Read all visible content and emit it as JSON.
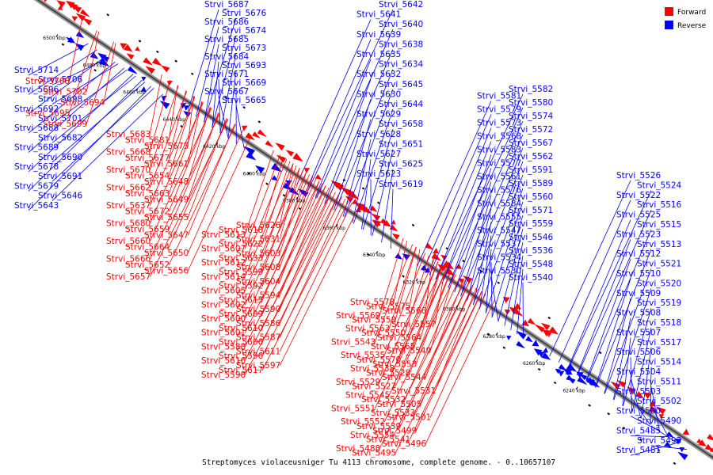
{
  "legend": [
    {
      "label": "Forward",
      "color": "#ff0000"
    },
    {
      "label": "Reverse",
      "color": "#0000ff"
    }
  ],
  "caption": "Streptomyces violaceusniger Tu 4113 chromosome, complete genome. - 0..10657107",
  "colors": {
    "forward": "#ff0000",
    "reverse": "#0000ff",
    "backbone": "#777777"
  },
  "ticks": [
    "6500 kbp",
    "6480 kbp",
    "6460 kbp",
    "6440 kbp",
    "6420 kbp",
    "6400 kbp",
    "6380 kbp",
    "6360 kbp",
    "6340 kbp",
    "6320 kbp",
    "6300 kbp",
    "6280 kbp",
    "6260 kbp",
    "6240 kbp"
  ],
  "reverse_genes": [
    "Strvi_5687",
    "Strvi_5676",
    "Strvi_5686",
    "Strvi_5674",
    "Strvi_5685",
    "Strvi_5673",
    "Strvi_5684",
    "Strvi_5693",
    "Strvi_5671",
    "Strvi_5669",
    "Strvi_5667",
    "Strvi_5665",
    "Strvi_5642",
    "Strvi_5641",
    "Strvi_5640",
    "Strvi_5639",
    "Strvi_5638",
    "Strvi_5635",
    "Strvi_5634",
    "Strvi_5632",
    "Strvi_5645",
    "Strvi_5630",
    "Strvi_5644",
    "Strvi_5629",
    "Strvi_5658",
    "Strvi_5628",
    "Strvi_5651",
    "Strvi_5627",
    "Strvi_5625",
    "Strvi_5623",
    "Strvi_5619",
    "Strvi_5714",
    "Strvi_5706",
    "Strvi_5696",
    "Strvi_5698",
    "Strvi_5692",
    "Strvi_5701",
    "Strvi_5688",
    "Strvi_5682",
    "Strvi_5689",
    "Strvi_5690",
    "Strvi_5678",
    "Strvi_5691",
    "Strvi_5679",
    "Strvi_5646",
    "Strvi_5643",
    "Strvi_5582",
    "Strvi_5581",
    "Strvi_5580",
    "Strvi_5579",
    "Strvi_5574",
    "Strvi_5573",
    "Strvi_5572",
    "Strvi_5568",
    "Strvi_5567",
    "Strvi_5583",
    "Strvi_5562",
    "Strvi_5577",
    "Strvi_5591",
    "Strvi_5561",
    "Strvi_5589",
    "Strvi_5576",
    "Strvi_5560",
    "Strvi_5584",
    "Strvi_5571",
    "Strvi_5555",
    "Strvi_5559",
    "Strvi_5547",
    "Strvi_5546",
    "Strvi_5537",
    "Strvi_5536",
    "Strvi_5534",
    "Strvi_5548",
    "Strvi_5530",
    "Strvi_5540",
    "Strvi_5526",
    "Strvi_5524",
    "Strvi_5522",
    "Strvi_5516",
    "Strvi_5525",
    "Strvi_5515",
    "Strvi_5523",
    "Strvi_5513",
    "Strvi_5512",
    "Strvi_5521",
    "Strvi_5510",
    "Strvi_5520",
    "Strvi_5509",
    "Strvi_5519",
    "Strvi_5508",
    "Strvi_5518",
    "Strvi_5507",
    "Strvi_5517",
    "Strvi_5506",
    "Strvi_5514",
    "Strvi_5504",
    "Strvi_5511",
    "Strvi_5503",
    "Strvi_5502",
    "Strvi_5500",
    "Strvi_5490",
    "Strvi_5485",
    "Strvi_5493",
    "Strvi_5481"
  ],
  "forward_genes": [
    "Strvi_5708",
    "Strvi_5702",
    "Strvi_5694",
    "Strvi_5695",
    "Strvi_5699",
    "Strvi_5683",
    "Strvi_5681",
    "Strvi_5675",
    "Strvi_5668",
    "Strvi_5677",
    "Strvi_5661",
    "Strvi_5670",
    "Strvi_5654",
    "Strvi_5648",
    "Strvi_5662",
    "Strvi_5663",
    "Strvi_5649",
    "Strvi_5637",
    "Strvi_5672",
    "Strvi_5655",
    "Strvi_5680",
    "Strvi_5659",
    "Strvi_5647",
    "Strvi_5660",
    "Strvi_5664",
    "Strvi_5650",
    "Strvi_5666",
    "Strvi_5652",
    "Strvi_5656",
    "Strvi_5657",
    "Strvi_5626",
    "Strvi_5618",
    "Strvi_5613",
    "Strvi_5631",
    "Strvi_5622",
    "Strvi_5607",
    "Strvi_5603",
    "Strvi_5633",
    "Strvi_5612",
    "Strvi_5608",
    "Strvi_5599",
    "Strvi_5614",
    "Strvi_5604",
    "Strvi_5592",
    "Strvi_5605",
    "Strvi_5594",
    "Strvi_5615",
    "Strvi_5602",
    "Strvi_5590",
    "Strvi_5609",
    "Strvi_5600",
    "Strvi_5586",
    "Strvi_5610",
    "Strvi_5601",
    "Strvi_5587",
    "Strvi_5606",
    "Strvi_5588",
    "Strvi_5611",
    "Strvi_5596",
    "Strvi_5616",
    "Strvi_5597",
    "Strvi_5617",
    "Strvi_5598",
    "Strvi_5578",
    "Strvi_5575",
    "Strvi_5566",
    "Strvi_5569",
    "Strvi_5558",
    "Strvi_5557",
    "Strvi_5563",
    "Strvi_5550",
    "Strvi_5564",
    "Strvi_5543",
    "Strvi_5565",
    "Strvi_5549",
    "Strvi_5535",
    "Strvi_5570",
    "Strvi_5553",
    "Strvi_5538",
    "Strvi_5528",
    "Strvi_5544",
    "Strvi_5529",
    "Strvi_5527",
    "Strvi_5531",
    "Strvi_5545",
    "Strvi_5532",
    "Strvi_5505",
    "Strvi_5551",
    "Strvi_5533",
    "Strvi_5501",
    "Strvi_5552",
    "Strvi_5539",
    "Strvi_5499",
    "Strvi_5554",
    "Strvi_5541",
    "Strvi_5496",
    "Strvi_5488",
    "Strvi_5495"
  ]
}
